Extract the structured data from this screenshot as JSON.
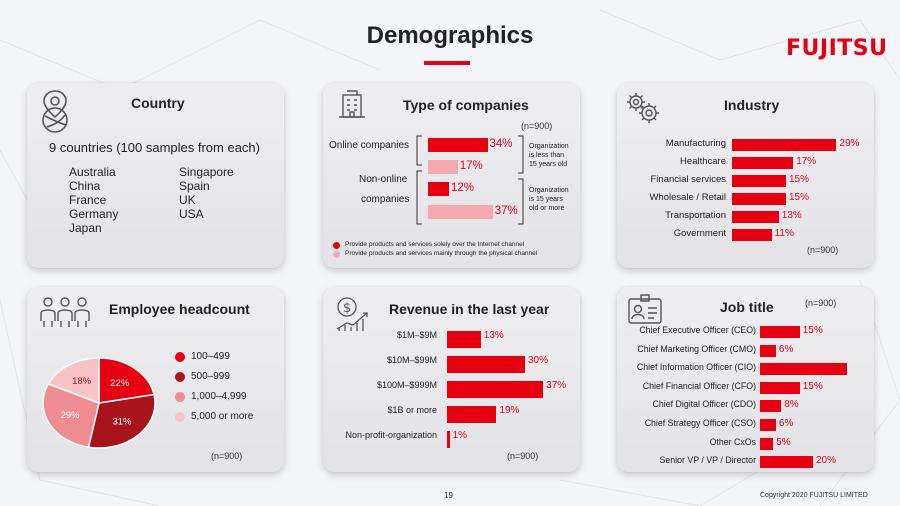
{
  "title": "Demographics",
  "logo": "FUJITSU",
  "country": {
    "title": "Country",
    "headline": "9 countries (100 samples from each)",
    "left_list": [
      "Australia",
      "China",
      "France",
      "Germany",
      "Japan"
    ],
    "right_list": [
      "Singapore",
      "Spain",
      "UK",
      "USA"
    ]
  },
  "companies": {
    "title": "Type of companies",
    "n": "(n=900)",
    "label_online": "Online companies",
    "label_nononline_1": "Non-online",
    "label_nononline_2": "companies",
    "note_young": [
      "Organization",
      "is less than",
      "15 years old"
    ],
    "note_old": [
      "Organization",
      "is 15 years",
      "old or more"
    ],
    "legend": [
      {
        "label": "Provide products and services solely over the Internet channel",
        "color": "#e60012"
      },
      {
        "label": "Provide products and services mainly through the physical channel",
        "color": "#f4a9ae"
      }
    ]
  },
  "industry": {
    "title": "Industry",
    "n": "(n=900)"
  },
  "headcount": {
    "title": "Employee headcount",
    "n": "(n=900)"
  },
  "revenue": {
    "title": "Revenue in the last year",
    "n": "(n=900)"
  },
  "jobtitle": {
    "title": "Job title",
    "n": "(n=900)"
  },
  "footer": {
    "page": "19",
    "copyright": "Copyright 2020 FUJITSU LIMITED"
  },
  "chart_data": [
    {
      "type": "bar",
      "title": "Type of companies",
      "categories": [
        "Online companies (less than 15 years old)",
        "Non-online companies (less than 15 years old)",
        "Online companies (15 years old or more)",
        "Non-online companies (15 years old or more)"
      ],
      "values": [
        34,
        17,
        12,
        37
      ],
      "display": [
        "34%",
        "17%",
        "12%",
        "37%"
      ],
      "colors": [
        "#e60012",
        "#f4a9ae",
        "#e60012",
        "#f4a9ae"
      ]
    },
    {
      "type": "bar",
      "title": "Industry",
      "categories": [
        "Manufacturing",
        "Healthcare",
        "Financial services",
        "Wholesale / Retail",
        "Transportation",
        "Government"
      ],
      "values": [
        29,
        17,
        15,
        15,
        13,
        11
      ],
      "display": [
        "29%",
        "17%",
        "15%",
        "15%",
        "13%",
        "11%"
      ]
    },
    {
      "type": "pie",
      "title": "Employee headcount",
      "categories": [
        "100–499",
        "500–999",
        "1,000–4,999",
        "5,000 or more"
      ],
      "values": [
        22,
        31,
        29,
        18
      ],
      "display": [
        "22%",
        "31%",
        "29%",
        "18%"
      ],
      "colors": [
        "#e60012",
        "#a8141d",
        "#ee8c92",
        "#f8c3c6"
      ]
    },
    {
      "type": "bar",
      "title": "Revenue in the last year",
      "categories": [
        "$1M–$9M",
        "$10M–$99M",
        "$100M–$999M",
        "$1B or more",
        "Non-profit-organization"
      ],
      "values": [
        13,
        30,
        37,
        19,
        1
      ],
      "display": [
        "13%",
        "30%",
        "37%",
        "19%",
        "1%"
      ]
    },
    {
      "type": "bar",
      "title": "Job title",
      "categories": [
        "Chief Executive Officer (CEO)",
        "Chief Marketing Officer (CMO)",
        "Chief Information Officer (CIO)",
        "Chief Financial Officer (CFO)",
        "Chief Digital Officer (CDO)",
        "Chief Strategy Officer (CSO)",
        "Other CxOs",
        "Senior VP / VP / Director"
      ],
      "values": [
        15,
        6,
        33,
        15,
        8,
        6,
        5,
        20
      ],
      "display": [
        "15%",
        "6%",
        "",
        "15%",
        "8%",
        "6%",
        "5%",
        "20%"
      ]
    }
  ]
}
